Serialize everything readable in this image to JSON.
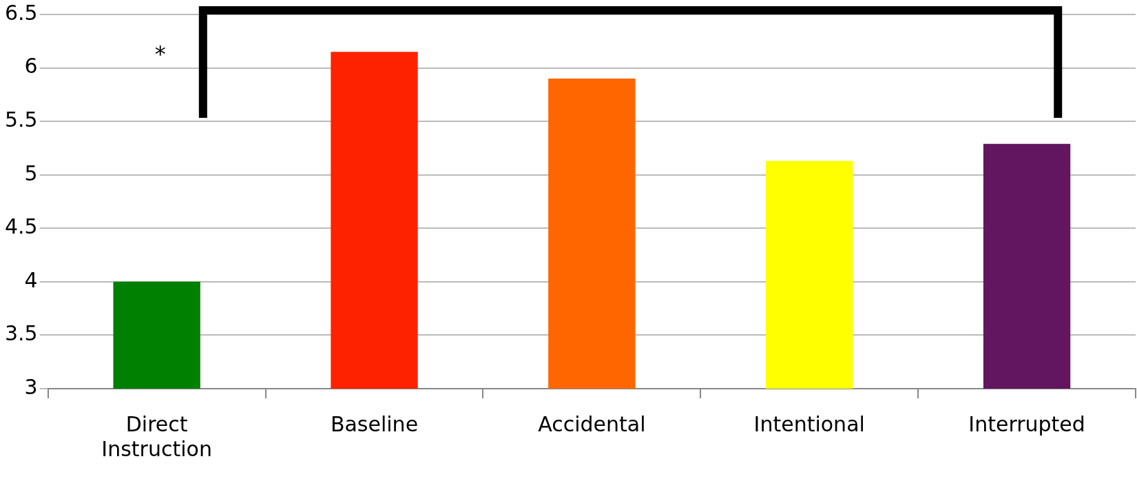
{
  "chart_data": {
    "type": "bar",
    "categories": [
      "Direct Instruction",
      "Baseline",
      "Accidental",
      "Intentional",
      "Interrupted"
    ],
    "values": [
      4.0,
      6.15,
      5.9,
      5.13,
      5.29
    ],
    "colors": [
      "#008000",
      "#ff2200",
      "#ff6600",
      "#ffff00",
      "#621660"
    ],
    "ylim": [
      3,
      6.5
    ],
    "yticks": [
      3,
      3.5,
      4,
      4.5,
      5,
      5.5,
      6,
      6.5
    ],
    "grid": "y",
    "legend": false,
    "annotations": [
      "*"
    ]
  }
}
